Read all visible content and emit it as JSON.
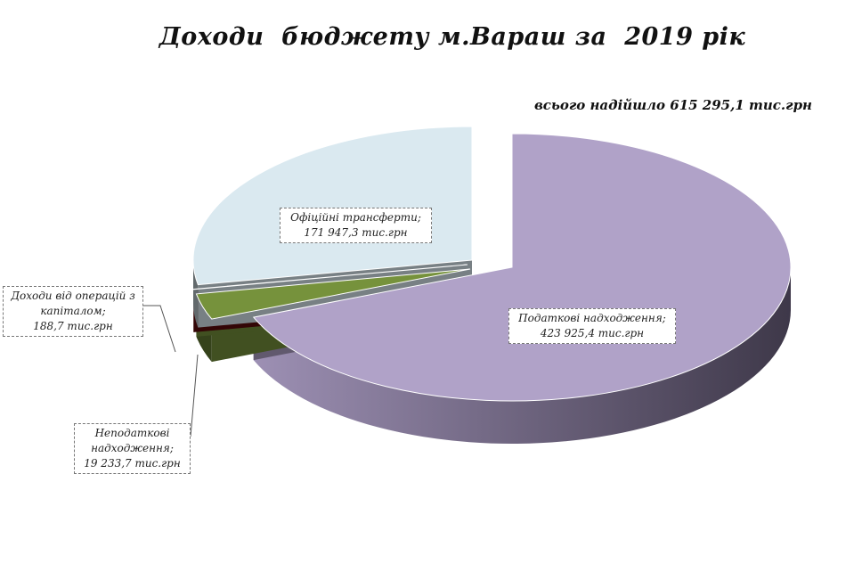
{
  "chart_data": {
    "type": "pie",
    "title": "Доходи  бюджету м.Вараш за  2019 рік",
    "subtitle": "всього надійшло 615 295,1 тис.грн",
    "slices": [
      {
        "label": "Податкові надходження;",
        "value": 423925.4,
        "value_label": "423 925,4 тис.грн",
        "color": "#b0a2c8"
      },
      {
        "label": "Неподаткові надходження;",
        "value": 19233.7,
        "value_label": "19 233,7 тис.грн",
        "color": "#76923c"
      },
      {
        "label": "Доходи від операцій з капіталом;",
        "value": 188.7,
        "value_label": "188,7 тис.грн",
        "color": "#5c0a0a"
      },
      {
        "label": "Офіційні трансферти;",
        "value": 171947.3,
        "value_label": "171 947,3 тис.грн",
        "color": "#dae9f0"
      }
    ],
    "style": "3d-exploded"
  }
}
